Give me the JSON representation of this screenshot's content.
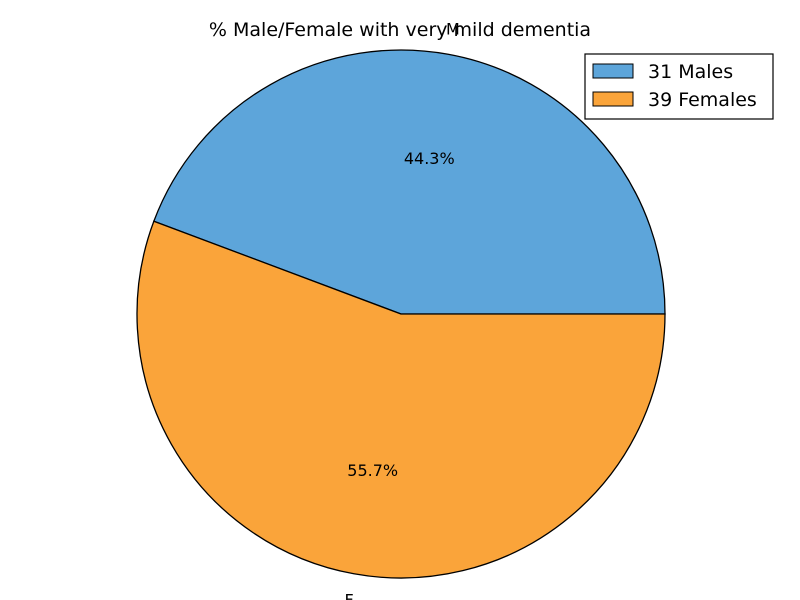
{
  "chart_data": {
    "type": "pie",
    "title": "% Male/Female with very mild dementia",
    "slices": [
      {
        "label": "M",
        "legend": "31 Males",
        "value": 31,
        "pct_label": "44.3%",
        "color": "#5da5da"
      },
      {
        "label": "F",
        "legend": "39 Females",
        "value": 39,
        "pct_label": "55.7%",
        "color": "#faa43a"
      }
    ],
    "start_angle_deg": 0,
    "direction": "counterclockwise",
    "legend_position": "top-right"
  }
}
